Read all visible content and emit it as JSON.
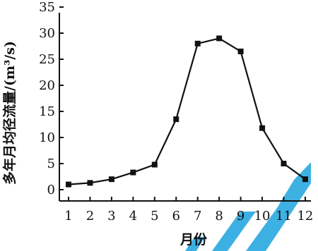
{
  "chart_data": {
    "type": "line",
    "title": "",
    "xlabel": "月份",
    "ylabel": "多年月均径流量/(m³/s)",
    "categories": [
      "1",
      "2",
      "3",
      "4",
      "5",
      "6",
      "7",
      "8",
      "9",
      "10",
      "11",
      "12"
    ],
    "x": [
      1,
      2,
      3,
      4,
      5,
      6,
      7,
      8,
      9,
      10,
      11,
      12
    ],
    "values": [
      1.0,
      1.3,
      2.0,
      3.3,
      4.8,
      13.5,
      28.0,
      29.0,
      26.5,
      11.8,
      5.0,
      2.0
    ],
    "ylim": [
      -2,
      35
    ],
    "yticks": [
      0,
      5,
      10,
      15,
      20,
      25,
      30,
      35
    ],
    "grid": false,
    "marker": "square",
    "line_color": "#111111",
    "watermark_color": "#29a8e0"
  }
}
